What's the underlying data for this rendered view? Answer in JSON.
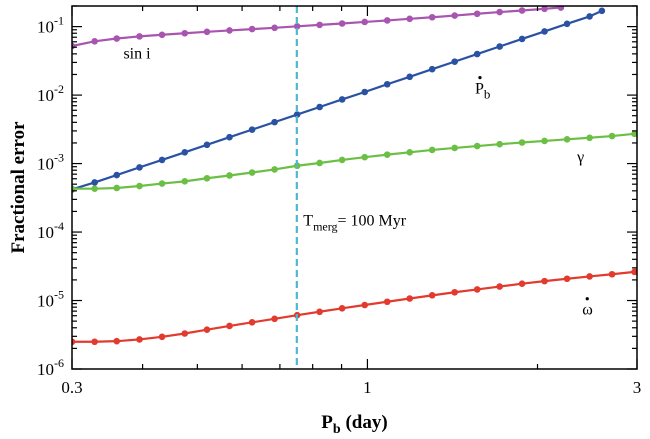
{
  "chart_data": {
    "type": "line",
    "xlabel": "P",
    "xlabel_sub": "b",
    "xlabel_unit": " (day)",
    "ylabel": "Fractional error",
    "x_scale": "log",
    "y_scale": "log",
    "xlim": [
      0.3,
      3
    ],
    "ylim": [
      1e-06,
      0.2
    ],
    "x_ticks": [
      {
        "value": 0.3,
        "label": "0.3"
      },
      {
        "value": 1,
        "label": "1"
      },
      {
        "value": 3,
        "label": "3"
      }
    ],
    "y_ticks": [
      {
        "value": 1e-06,
        "base": "10",
        "exp": "-6"
      },
      {
        "value": 1e-05,
        "base": "10",
        "exp": "-5"
      },
      {
        "value": 0.0001,
        "base": "10",
        "exp": "-4"
      },
      {
        "value": 0.001,
        "base": "10",
        "exp": "-3"
      },
      {
        "value": 0.01,
        "base": "10",
        "exp": "-2"
      },
      {
        "value": 0.1,
        "base": "10",
        "exp": "-1"
      }
    ],
    "series": [
      {
        "key": "sini",
        "color": "#a855b0",
        "x": [
          0.3,
          0.329,
          0.36,
          0.395,
          0.433,
          0.475,
          0.52,
          0.57,
          0.625,
          0.685,
          0.751,
          0.823,
          0.902,
          0.989,
          1.084,
          1.188,
          1.302,
          1.427,
          1.564,
          1.714,
          1.878,
          2.058,
          2.2
        ],
        "y": [
          0.052,
          0.061,
          0.067,
          0.072,
          0.076,
          0.08,
          0.084,
          0.088,
          0.092,
          0.096,
          0.101,
          0.106,
          0.111,
          0.117,
          0.123,
          0.13,
          0.137,
          0.145,
          0.154,
          0.163,
          0.172,
          0.182,
          0.19
        ]
      },
      {
        "key": "pbdot",
        "color": "#2a52a2",
        "x": [
          0.3,
          0.329,
          0.36,
          0.395,
          0.433,
          0.475,
          0.52,
          0.57,
          0.625,
          0.685,
          0.751,
          0.823,
          0.902,
          0.989,
          1.084,
          1.188,
          1.302,
          1.427,
          1.564,
          1.714,
          1.878,
          2.058,
          2.256,
          2.473,
          2.6
        ],
        "y": [
          0.00042,
          0.00053,
          0.00068,
          0.00088,
          0.00113,
          0.00146,
          0.00188,
          0.00243,
          0.00313,
          0.00403,
          0.0052,
          0.0067,
          0.00864,
          0.0111,
          0.0144,
          0.0185,
          0.0239,
          0.0308,
          0.0397,
          0.0512,
          0.066,
          0.085,
          0.11,
          0.141,
          0.17
        ]
      },
      {
        "key": "gamma",
        "color": "#6bbf45",
        "x": [
          0.3,
          0.329,
          0.36,
          0.395,
          0.433,
          0.475,
          0.52,
          0.57,
          0.625,
          0.685,
          0.751,
          0.823,
          0.902,
          0.989,
          1.084,
          1.188,
          1.302,
          1.427,
          1.564,
          1.714,
          1.878,
          2.058,
          2.256,
          2.473,
          2.71,
          2.97
        ],
        "y": [
          0.00043,
          0.00043,
          0.00044,
          0.00047,
          0.00051,
          0.00055,
          0.00061,
          0.00067,
          0.00074,
          0.00082,
          0.00093,
          0.00102,
          0.00113,
          0.00124,
          0.00135,
          0.00146,
          0.00158,
          0.00169,
          0.0018,
          0.00192,
          0.00203,
          0.00214,
          0.00226,
          0.00238,
          0.00252,
          0.00272
        ]
      },
      {
        "key": "omdot",
        "color": "#e23a2e",
        "x": [
          0.3,
          0.329,
          0.36,
          0.395,
          0.433,
          0.475,
          0.52,
          0.57,
          0.625,
          0.685,
          0.751,
          0.823,
          0.902,
          0.989,
          1.084,
          1.188,
          1.302,
          1.427,
          1.564,
          1.714,
          1.878,
          2.058,
          2.256,
          2.473,
          2.71,
          2.97
        ],
        "y": [
          2.5e-06,
          2.5e-06,
          2.55e-06,
          2.7e-06,
          2.95e-06,
          3.3e-06,
          3.75e-06,
          4.25e-06,
          4.8e-06,
          5.4e-06,
          6.1e-06,
          6.85e-06,
          7.7e-06,
          8.6e-06,
          9.6e-06,
          1.07e-05,
          1.19e-05,
          1.32e-05,
          1.45e-05,
          1.6e-05,
          1.76e-05,
          1.92e-05,
          2.08e-05,
          2.25e-05,
          2.42e-05,
          2.62e-05
        ]
      }
    ],
    "series_labels": [
      {
        "key": "sini",
        "text": "sin i",
        "x": 0.37,
        "y": 0.034
      },
      {
        "key": "pbdot",
        "text": "P",
        "sub": "b",
        "dot": true,
        "x": 1.55,
        "y": 0.0105
      },
      {
        "key": "gamma",
        "text": "γ",
        "x": 2.35,
        "y": 0.00105
      },
      {
        "key": "omdot",
        "text": "ω",
        "dot": true,
        "x": 2.4,
        "y": 6.2e-06
      }
    ],
    "vline": {
      "x": 0.75,
      "color": "#4fb8cf",
      "dashed": true,
      "label": "T",
      "label_sub": "merg",
      "label_rest": "= 100 Myr",
      "label_x": 0.77,
      "label_y": 0.000125
    }
  }
}
